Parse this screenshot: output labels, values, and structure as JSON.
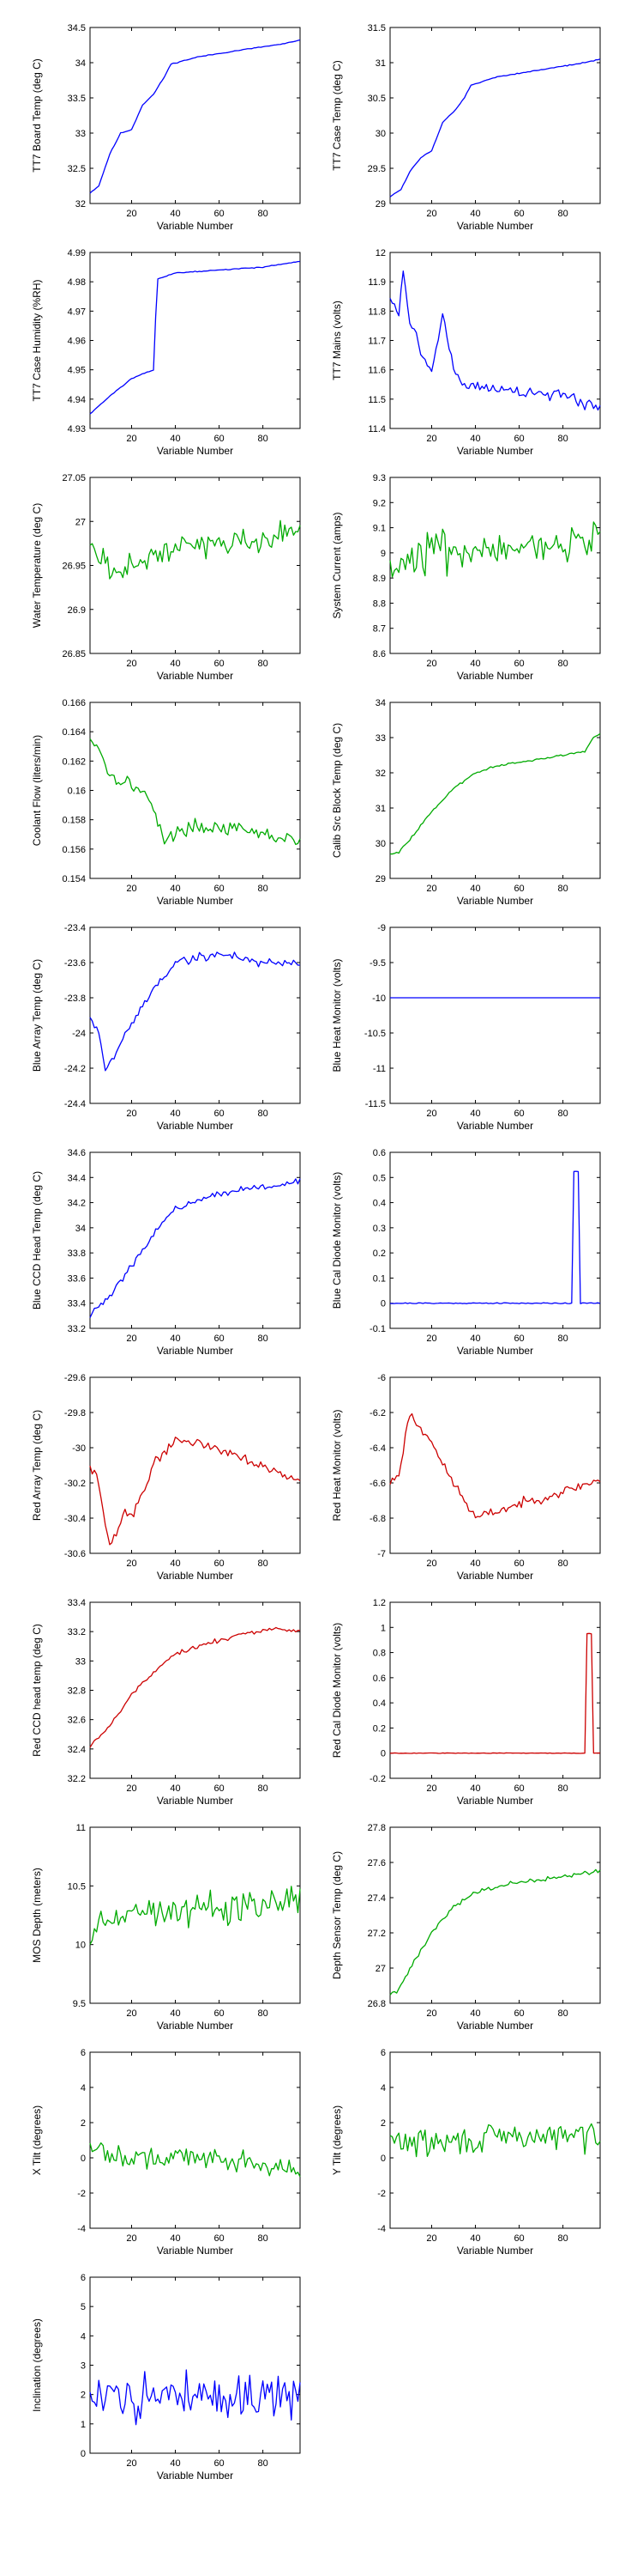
{
  "figure": {
    "xlabel": "Variable Number",
    "x_ticks": [
      "20",
      "40",
      "60",
      "80"
    ],
    "n_points": 97
  },
  "chart_data": [
    {
      "type": "line",
      "ylabel": "TT7 Board Temp (deg C)",
      "color": "#0000ff",
      "xlim": [
        1,
        97
      ],
      "ylim": [
        32,
        34.5
      ],
      "yticks": [
        "32",
        "32.5",
        "33",
        "33.5",
        "34",
        "34.5"
      ],
      "shape": {
        "kind": "anchors",
        "pts": [
          [
            1,
            32.15
          ],
          [
            5,
            32.25
          ],
          [
            10,
            32.7
          ],
          [
            15,
            33.0
          ],
          [
            20,
            33.05
          ],
          [
            25,
            33.4
          ],
          [
            30,
            33.55
          ],
          [
            35,
            33.8
          ],
          [
            38,
            33.98
          ],
          [
            50,
            34.08
          ],
          [
            70,
            34.18
          ],
          [
            90,
            34.27
          ],
          [
            97,
            34.32
          ]
        ],
        "noise": 0.01,
        "seed": 11
      }
    },
    {
      "type": "line",
      "ylabel": "TT7 Case Temp (deg C)",
      "color": "#0000ff",
      "xlim": [
        1,
        97
      ],
      "ylim": [
        29,
        31.5
      ],
      "yticks": [
        "29",
        "29.5",
        "30",
        "30.5",
        "31",
        "31.5"
      ],
      "shape": {
        "kind": "anchors",
        "pts": [
          [
            1,
            29.1
          ],
          [
            6,
            29.2
          ],
          [
            10,
            29.45
          ],
          [
            15,
            29.65
          ],
          [
            20,
            29.75
          ],
          [
            25,
            30.15
          ],
          [
            30,
            30.3
          ],
          [
            35,
            30.5
          ],
          [
            38,
            30.68
          ],
          [
            50,
            30.8
          ],
          [
            70,
            30.9
          ],
          [
            90,
            31.0
          ],
          [
            97,
            31.05
          ]
        ],
        "noise": 0.01,
        "seed": 12
      }
    },
    {
      "type": "line",
      "ylabel": "TT7 Case Humidity (%RH)",
      "color": "#0000ff",
      "xlim": [
        1,
        97
      ],
      "ylim": [
        4.93,
        4.99
      ],
      "yticks": [
        "4.93",
        "4.94",
        "4.95",
        "4.96",
        "4.97",
        "4.98",
        "4.99"
      ],
      "shape": {
        "kind": "anchors",
        "pts": [
          [
            1,
            4.935
          ],
          [
            10,
            4.941
          ],
          [
            20,
            4.947
          ],
          [
            30,
            4.95
          ],
          [
            31,
            4.968
          ],
          [
            32,
            4.981
          ],
          [
            40,
            4.983
          ],
          [
            60,
            4.984
          ],
          [
            80,
            4.985
          ],
          [
            97,
            4.987
          ]
        ],
        "noise": 0.0002,
        "seed": 13
      }
    },
    {
      "type": "line",
      "ylabel": "TT7 Mains  (volts)",
      "color": "#0000ff",
      "xlim": [
        1,
        97
      ],
      "ylim": [
        11.4,
        12
      ],
      "yticks": [
        "11.4",
        "11.5",
        "11.6",
        "11.7",
        "11.8",
        "11.9",
        "12"
      ],
      "shape": {
        "kind": "anchors",
        "pts": [
          [
            1,
            11.85
          ],
          [
            5,
            11.8
          ],
          [
            7,
            11.95
          ],
          [
            10,
            11.75
          ],
          [
            13,
            11.72
          ],
          [
            15,
            11.65
          ],
          [
            20,
            11.6
          ],
          [
            25,
            11.8
          ],
          [
            30,
            11.6
          ],
          [
            35,
            11.55
          ],
          [
            50,
            11.53
          ],
          [
            70,
            11.52
          ],
          [
            85,
            11.5
          ],
          [
            97,
            11.47
          ]
        ],
        "noise": 0.03,
        "seed": 14
      }
    },
    {
      "type": "line",
      "ylabel": "Water Temperature (deg C)",
      "color": "#00aa00",
      "xlim": [
        1,
        97
      ],
      "ylim": [
        26.85,
        27.05
      ],
      "yticks": [
        "26.85",
        "26.9",
        "26.95",
        "27",
        "27.05"
      ],
      "shape": {
        "kind": "anchors",
        "pts": [
          [
            1,
            26.98
          ],
          [
            10,
            26.94
          ],
          [
            20,
            26.95
          ],
          [
            40,
            26.97
          ],
          [
            60,
            26.975
          ],
          [
            80,
            26.98
          ],
          [
            97,
            26.99
          ]
        ],
        "noise": 0.02,
        "seed": 15
      }
    },
    {
      "type": "line",
      "ylabel": "System Current (amps)",
      "color": "#00aa00",
      "xlim": [
        1,
        97
      ],
      "ylim": [
        8.6,
        9.3
      ],
      "yticks": [
        "8.6",
        "8.7",
        "8.8",
        "8.9",
        "9",
        "9.1",
        "9.2",
        "9.3"
      ],
      "shape": {
        "kind": "anchors",
        "pts": [
          [
            1,
            8.95
          ],
          [
            20,
            9.0
          ],
          [
            40,
            9.02
          ],
          [
            60,
            9.03
          ],
          [
            80,
            9.05
          ],
          [
            97,
            9.05
          ]
        ],
        "noise": 0.12,
        "seed": 16
      }
    },
    {
      "type": "line",
      "ylabel": "Coolant Flow (liters/min)",
      "color": "#00aa00",
      "xlim": [
        1,
        97
      ],
      "ylim": [
        0.154,
        0.166
      ],
      "yticks": [
        "0.154",
        "0.156",
        "0.158",
        "0.16",
        "0.162",
        "0.164",
        "0.166"
      ],
      "shape": {
        "kind": "anchors",
        "pts": [
          [
            1,
            0.1635
          ],
          [
            5,
            0.163
          ],
          [
            10,
            0.161
          ],
          [
            20,
            0.1605
          ],
          [
            30,
            0.159
          ],
          [
            35,
            0.1565
          ],
          [
            45,
            0.1575
          ],
          [
            60,
            0.1575
          ],
          [
            80,
            0.157
          ],
          [
            97,
            0.1565
          ]
        ],
        "noise": 0.0007,
        "seed": 17
      }
    },
    {
      "type": "line",
      "ylabel": "Calib Src Block Temp (deg C)",
      "color": "#00aa00",
      "xlim": [
        1,
        97
      ],
      "ylim": [
        29,
        34
      ],
      "yticks": [
        "29",
        "30",
        "31",
        "32",
        "33",
        "34"
      ],
      "shape": {
        "kind": "anchors",
        "pts": [
          [
            1,
            29.7
          ],
          [
            5,
            29.75
          ],
          [
            10,
            30.1
          ],
          [
            20,
            30.9
          ],
          [
            30,
            31.55
          ],
          [
            40,
            32.0
          ],
          [
            50,
            32.2
          ],
          [
            70,
            32.4
          ],
          [
            90,
            32.6
          ],
          [
            94,
            33.0
          ],
          [
            97,
            33.1
          ]
        ],
        "noise": 0.04,
        "seed": 18
      }
    },
    {
      "type": "line",
      "ylabel": "Blue Array Temp (deg C)",
      "color": "#0000ff",
      "xlim": [
        1,
        97
      ],
      "ylim": [
        -24.4,
        -23.4
      ],
      "yticks": [
        "-24.4",
        "-24.2",
        "-24",
        "-23.8",
        "-23.6",
        "-23.4"
      ],
      "shape": {
        "kind": "anchors",
        "pts": [
          [
            1,
            -23.9
          ],
          [
            5,
            -24.0
          ],
          [
            8,
            -24.2
          ],
          [
            12,
            -24.15
          ],
          [
            15,
            -24.05
          ],
          [
            20,
            -23.95
          ],
          [
            25,
            -23.85
          ],
          [
            30,
            -23.75
          ],
          [
            40,
            -23.6
          ],
          [
            60,
            -23.55
          ],
          [
            80,
            -23.6
          ],
          [
            97,
            -23.6
          ]
        ],
        "noise": 0.04,
        "seed": 19
      }
    },
    {
      "type": "line",
      "ylabel": "Blue Heat Monitor (volts)",
      "color": "#0000ff",
      "xlim": [
        1,
        97
      ],
      "ylim": [
        -11.5,
        -9
      ],
      "yticks": [
        "-11.5",
        "-11",
        "-10.5",
        "-10",
        "-9.5",
        "-9"
      ],
      "shape": {
        "kind": "constant",
        "value": -10
      }
    },
    {
      "type": "line",
      "ylabel": "Blue CCD Head Temp (deg C)",
      "color": "#0000ff",
      "xlim": [
        1,
        97
      ],
      "ylim": [
        33.2,
        34.6
      ],
      "yticks": [
        "33.2",
        "33.4",
        "33.6",
        "33.8",
        "34",
        "34.2",
        "34.4",
        "34.6"
      ],
      "shape": {
        "kind": "anchors",
        "pts": [
          [
            1,
            33.3
          ],
          [
            10,
            33.45
          ],
          [
            20,
            33.7
          ],
          [
            30,
            33.95
          ],
          [
            40,
            34.15
          ],
          [
            55,
            34.25
          ],
          [
            70,
            34.3
          ],
          [
            85,
            34.33
          ],
          [
            97,
            34.38
          ]
        ],
        "noise": 0.035,
        "seed": 20
      }
    },
    {
      "type": "line",
      "ylabel": "Blue Cal Diode Monitor (volts)",
      "color": "#0000ff",
      "xlim": [
        1,
        97
      ],
      "ylim": [
        -0.1,
        0.6
      ],
      "yticks": [
        "-0.1",
        "0",
        "0.1",
        "0.2",
        "0.3",
        "0.4",
        "0.5",
        "0.6"
      ],
      "shape": {
        "kind": "pulse",
        "base": 0,
        "peak": 0.525,
        "from": 85,
        "to": 87,
        "noise": 0.002,
        "seed": 21
      }
    },
    {
      "type": "line",
      "ylabel": "Red Array Temp (deg C)",
      "color": "#cc0000",
      "xlim": [
        1,
        97
      ],
      "ylim": [
        -30.6,
        -29.6
      ],
      "yticks": [
        "-30.6",
        "-30.4",
        "-30.2",
        "-30",
        "-29.8",
        "-29.6"
      ],
      "shape": {
        "kind": "anchors",
        "pts": [
          [
            1,
            -30.1
          ],
          [
            5,
            -30.2
          ],
          [
            8,
            -30.45
          ],
          [
            10,
            -30.55
          ],
          [
            13,
            -30.5
          ],
          [
            17,
            -30.35
          ],
          [
            20,
            -30.4
          ],
          [
            25,
            -30.25
          ],
          [
            30,
            -30.1
          ],
          [
            40,
            -29.95
          ],
          [
            60,
            -30.0
          ],
          [
            80,
            -30.1
          ],
          [
            97,
            -30.2
          ]
        ],
        "noise": 0.04,
        "seed": 22
      }
    },
    {
      "type": "line",
      "ylabel": "Red Heat Monitor (volts)",
      "color": "#cc0000",
      "xlim": [
        1,
        97
      ],
      "ylim": [
        -7,
        -6
      ],
      "yticks": [
        "-7",
        "-6.8",
        "-6.6",
        "-6.4",
        "-6.2",
        "-6"
      ],
      "shape": {
        "kind": "anchors",
        "pts": [
          [
            1,
            -6.6
          ],
          [
            5,
            -6.55
          ],
          [
            10,
            -6.2
          ],
          [
            15,
            -6.3
          ],
          [
            20,
            -6.35
          ],
          [
            25,
            -6.5
          ],
          [
            30,
            -6.6
          ],
          [
            35,
            -6.7
          ],
          [
            40,
            -6.8
          ],
          [
            60,
            -6.72
          ],
          [
            80,
            -6.65
          ],
          [
            97,
            -6.58
          ]
        ],
        "noise": 0.04,
        "seed": 23
      }
    },
    {
      "type": "line",
      "ylabel": "Red CCD head temp (deg C)",
      "color": "#cc0000",
      "xlim": [
        1,
        97
      ],
      "ylim": [
        32.2,
        33.4
      ],
      "yticks": [
        "32.2",
        "32.4",
        "32.6",
        "32.8",
        "33",
        "33.2",
        "33.4"
      ],
      "shape": {
        "kind": "anchors",
        "pts": [
          [
            1,
            32.42
          ],
          [
            10,
            32.55
          ],
          [
            20,
            32.78
          ],
          [
            30,
            32.92
          ],
          [
            40,
            33.05
          ],
          [
            55,
            33.12
          ],
          [
            70,
            33.18
          ],
          [
            85,
            33.22
          ],
          [
            97,
            33.2
          ]
        ],
        "noise": 0.025,
        "seed": 24
      }
    },
    {
      "type": "line",
      "ylabel": "Red Cal Diode Monitor (volts)",
      "color": "#cc0000",
      "xlim": [
        1,
        97
      ],
      "ylim": [
        -0.2,
        1.2
      ],
      "yticks": [
        "-0.2",
        "0",
        "0.2",
        "0.4",
        "0.6",
        "0.8",
        "1",
        "1.2"
      ],
      "shape": {
        "kind": "pulse",
        "base": 0,
        "peak": 0.95,
        "from": 91,
        "to": 93,
        "noise": 0.002,
        "seed": 25
      }
    },
    {
      "type": "line",
      "ylabel": "MOS Depth  (meters)",
      "color": "#00aa00",
      "xlim": [
        1,
        97
      ],
      "ylim": [
        9.5,
        11
      ],
      "yticks": [
        "9.5",
        "10",
        "10.5",
        "11"
      ],
      "shape": {
        "kind": "anchors",
        "pts": [
          [
            1,
            10.0
          ],
          [
            5,
            10.2
          ],
          [
            20,
            10.3
          ],
          [
            40,
            10.3
          ],
          [
            60,
            10.3
          ],
          [
            80,
            10.35
          ],
          [
            97,
            10.4
          ]
        ],
        "noise": 0.22,
        "seed": 26
      }
    },
    {
      "type": "line",
      "ylabel": "Depth Sensor Temp (deg C)",
      "color": "#00aa00",
      "xlim": [
        1,
        97
      ],
      "ylim": [
        26.8,
        27.8
      ],
      "yticks": [
        "26.8",
        "27",
        "27.2",
        "27.4",
        "27.6",
        "27.8"
      ],
      "shape": {
        "kind": "anchors",
        "pts": [
          [
            1,
            26.85
          ],
          [
            5,
            26.88
          ],
          [
            10,
            27.0
          ],
          [
            20,
            27.2
          ],
          [
            30,
            27.35
          ],
          [
            40,
            27.43
          ],
          [
            55,
            27.48
          ],
          [
            70,
            27.5
          ],
          [
            85,
            27.53
          ],
          [
            97,
            27.55
          ]
        ],
        "noise": 0.02,
        "seed": 27
      }
    },
    {
      "type": "line",
      "ylabel": "X Tilt  (degrees)",
      "color": "#00aa00",
      "xlim": [
        1,
        97
      ],
      "ylim": [
        -4,
        6
      ],
      "yticks": [
        "-4",
        "-2",
        "0",
        "2",
        "4",
        "6"
      ],
      "shape": {
        "kind": "anchors",
        "pts": [
          [
            1,
            0.5
          ],
          [
            20,
            0.0
          ],
          [
            40,
            0.0
          ],
          [
            60,
            0.0
          ],
          [
            80,
            -0.3
          ],
          [
            97,
            -0.8
          ]
        ],
        "noise": 0.9,
        "seed": 28
      }
    },
    {
      "type": "line",
      "ylabel": "Y Tilt  (degrees)",
      "color": "#00aa00",
      "xlim": [
        1,
        97
      ],
      "ylim": [
        -4,
        6
      ],
      "yticks": [
        "-4",
        "-2",
        "0",
        "2",
        "4",
        "6"
      ],
      "shape": {
        "kind": "anchors",
        "pts": [
          [
            1,
            1.0
          ],
          [
            20,
            0.8
          ],
          [
            40,
            1.0
          ],
          [
            60,
            1.2
          ],
          [
            80,
            1.2
          ],
          [
            97,
            1.3
          ]
        ],
        "noise": 1.2,
        "seed": 29
      }
    },
    {
      "type": "line",
      "ylabel": "Inclination  (degrees)",
      "color": "#0000ff",
      "xlim": [
        1,
        97
      ],
      "ylim": [
        0,
        6
      ],
      "yticks": [
        "0",
        "1",
        "2",
        "3",
        "4",
        "5",
        "6"
      ],
      "shape": {
        "kind": "anchors",
        "pts": [
          [
            1,
            2.0
          ],
          [
            20,
            1.8
          ],
          [
            40,
            2.0
          ],
          [
            60,
            2.0
          ],
          [
            80,
            1.9
          ],
          [
            97,
            2.0
          ]
        ],
        "noise": 1.1,
        "seed": 30
      }
    }
  ]
}
